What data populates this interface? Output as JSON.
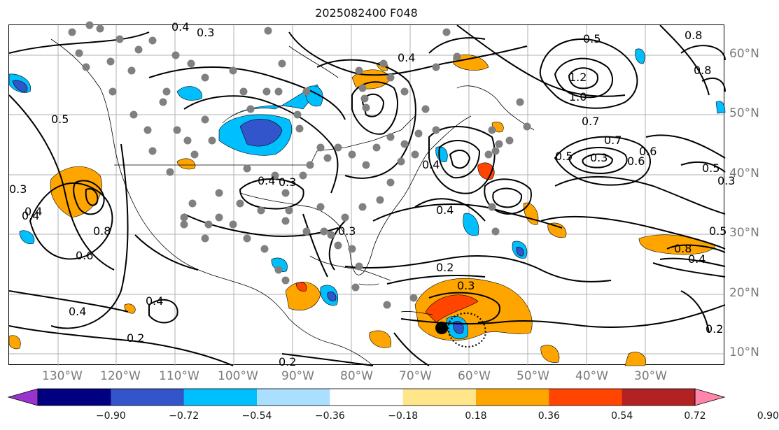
{
  "title": "2025082400 F048",
  "map": {
    "lon_labels": [
      "130°W",
      "120°W",
      "110°W",
      "100°W",
      "90°W",
      "80°W",
      "70°W",
      "60°W",
      "50°W",
      "40°W",
      "30°W"
    ],
    "lat_labels": [
      "60°N",
      "50°N",
      "40°N",
      "30°N",
      "20°N",
      "10°N"
    ],
    "contour_labels": [
      "0.4",
      "0.3",
      "0.3",
      "0.4",
      "0.5",
      "0.8",
      "1.2",
      "1.0",
      "0.8",
      "0.7",
      "0.5",
      "0.6",
      "0.7",
      "0.5",
      "0.3",
      "0.4",
      "0.5",
      "0.3",
      "0.4",
      "0.6",
      "0.8",
      "0.4",
      "0.3",
      "0.4",
      "0.6",
      "0.8",
      "0.4",
      "0.2",
      "0.3",
      "0.4",
      "0.2",
      "0.2",
      "0.3",
      "0.5",
      "0.4",
      "0.4",
      "0.2"
    ],
    "storm_marker": "tropical-cyclone-position"
  },
  "colorbar": {
    "tick_labels": [
      "−0.90",
      "−0.72",
      "−0.54",
      "−0.36",
      "−0.18",
      "0.18",
      "0.36",
      "0.54",
      "0.72",
      "0.90"
    ],
    "colors": [
      "#9933cc",
      "#000080",
      "#3355cc",
      "#00bfff",
      "#aadfff",
      "#ffffff",
      "#ffe68a",
      "#ffa500",
      "#ff4500",
      "#b22222",
      "#ff85aa"
    ]
  }
}
